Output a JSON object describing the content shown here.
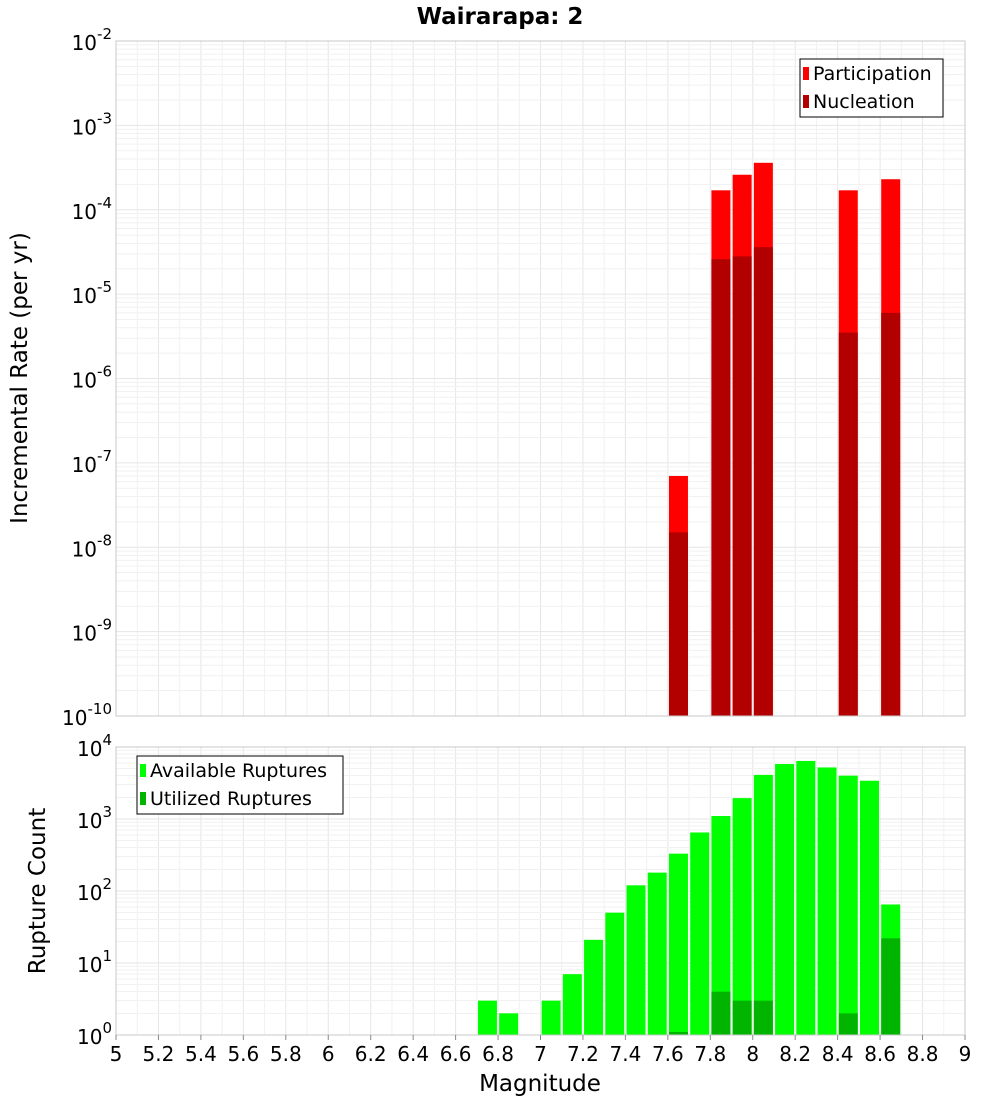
{
  "chart_data": [
    {
      "type": "bar",
      "title": "Wairarapa: 2",
      "ylabel": "Incremental Rate (per yr)",
      "xlabel": "",
      "y_scale": "log",
      "ylim": [
        1e-10,
        0.01
      ],
      "xlim": [
        5,
        9
      ],
      "grid": true,
      "legend_placement": "top-right",
      "y_ticks": [
        {
          "base": "10",
          "exp": "-10"
        },
        {
          "base": "10",
          "exp": "-9"
        },
        {
          "base": "10",
          "exp": "-8"
        },
        {
          "base": "10",
          "exp": "-7"
        },
        {
          "base": "10",
          "exp": "-6"
        },
        {
          "base": "10",
          "exp": "-5"
        },
        {
          "base": "10",
          "exp": "-4"
        },
        {
          "base": "10",
          "exp": "-3"
        },
        {
          "base": "10",
          "exp": "-2"
        }
      ],
      "series": [
        {
          "name": "Participation",
          "color": "#ff0000",
          "points": [
            {
              "x": 7.65,
              "y": 7e-08
            },
            {
              "x": 7.85,
              "y": 0.00017
            },
            {
              "x": 7.95,
              "y": 0.00026
            },
            {
              "x": 8.05,
              "y": 0.00036
            },
            {
              "x": 8.45,
              "y": 0.00017
            },
            {
              "x": 8.65,
              "y": 0.00023
            }
          ]
        },
        {
          "name": "Nucleation",
          "color": "#b20000",
          "points": [
            {
              "x": 7.65,
              "y": 1.5e-08
            },
            {
              "x": 7.85,
              "y": 2.6e-05
            },
            {
              "x": 7.95,
              "y": 2.8e-05
            },
            {
              "x": 8.05,
              "y": 3.6e-05
            },
            {
              "x": 8.45,
              "y": 3.5e-06
            },
            {
              "x": 8.65,
              "y": 6e-06
            }
          ]
        }
      ]
    },
    {
      "type": "bar",
      "title": "",
      "ylabel": "Rupture Count",
      "xlabel": "Magnitude",
      "y_scale": "log",
      "ylim": [
        1,
        10000
      ],
      "xlim": [
        5,
        9
      ],
      "grid": true,
      "legend_placement": "top-left",
      "x_ticks": [
        "5",
        "5.2",
        "5.4",
        "5.6",
        "5.8",
        "6",
        "6.2",
        "6.4",
        "6.6",
        "6.8",
        "7",
        "7.2",
        "7.4",
        "7.6",
        "7.8",
        "8",
        "8.2",
        "8.4",
        "8.6",
        "8.8",
        "9"
      ],
      "y_ticks": [
        {
          "base": "10",
          "exp": "0"
        },
        {
          "base": "10",
          "exp": "1"
        },
        {
          "base": "10",
          "exp": "2"
        },
        {
          "base": "10",
          "exp": "3"
        },
        {
          "base": "10",
          "exp": "4"
        }
      ],
      "series": [
        {
          "name": "Available Ruptures",
          "color": "#00ff00",
          "points": [
            {
              "x": 6.75,
              "y": 3
            },
            {
              "x": 6.85,
              "y": 2
            },
            {
              "x": 7.05,
              "y": 3
            },
            {
              "x": 7.15,
              "y": 7
            },
            {
              "x": 7.25,
              "y": 21
            },
            {
              "x": 7.35,
              "y": 50
            },
            {
              "x": 7.45,
              "y": 120
            },
            {
              "x": 7.55,
              "y": 180
            },
            {
              "x": 7.65,
              "y": 330
            },
            {
              "x": 7.75,
              "y": 650
            },
            {
              "x": 7.85,
              "y": 1100
            },
            {
              "x": 7.95,
              "y": 1950
            },
            {
              "x": 8.05,
              "y": 4100
            },
            {
              "x": 8.15,
              "y": 5800
            },
            {
              "x": 8.25,
              "y": 6400
            },
            {
              "x": 8.35,
              "y": 5200
            },
            {
              "x": 8.45,
              "y": 4000
            },
            {
              "x": 8.55,
              "y": 3400
            },
            {
              "x": 8.65,
              "y": 65
            }
          ]
        },
        {
          "name": "Utilized Ruptures",
          "color": "#00b400",
          "points": [
            {
              "x": 7.65,
              "y": 1.1
            },
            {
              "x": 7.85,
              "y": 4
            },
            {
              "x": 7.95,
              "y": 3
            },
            {
              "x": 8.05,
              "y": 3
            },
            {
              "x": 8.45,
              "y": 2
            },
            {
              "x": 8.65,
              "y": 22
            }
          ]
        }
      ]
    }
  ]
}
